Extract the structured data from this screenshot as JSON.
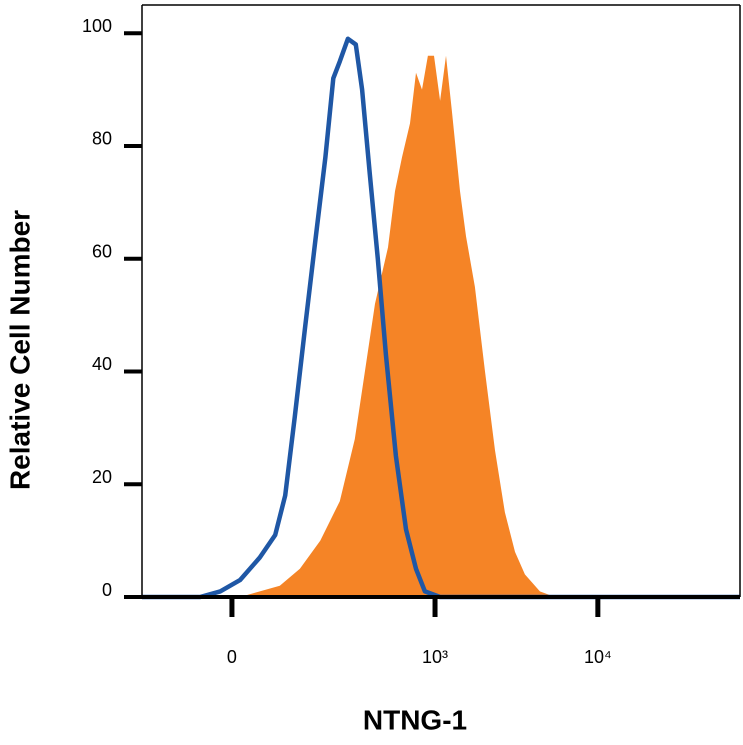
{
  "chart_data": {
    "type": "histogram-overlay",
    "xlabel": "NTNG-1",
    "ylabel": "Relative Cell Number",
    "xscale": "asinh",
    "xlim": [
      -187,
      74442
    ],
    "xticks": [
      0,
      {
        "value": 1000,
        "label": "10³"
      },
      {
        "value": 10000,
        "label": "10⁴"
      }
    ],
    "ylim": [
      0,
      105
    ],
    "yticks": [
      0,
      20,
      40,
      60,
      80,
      100
    ],
    "series": [
      {
        "style": "filled",
        "color": "#f58426",
        "x": [
          -187,
          13,
          46,
          83,
          127,
          182,
          249,
          313,
          364,
          422,
          510,
          564,
          624,
          700,
          763,
          831,
          904,
          985,
          1074,
          1169,
          1272,
          1425,
          1552,
          1761,
          2029,
          2337,
          2690,
          3101,
          3568,
          4412,
          5461,
          74442
        ],
        "values": [
          0,
          0,
          1,
          2,
          5,
          10,
          17,
          28,
          40,
          52,
          62,
          72,
          78,
          84,
          93,
          90,
          96,
          96,
          88,
          96,
          86,
          72,
          64,
          55,
          40,
          26,
          15,
          8,
          4,
          1,
          0,
          0
        ]
      },
      {
        "style": "line",
        "color": "#1f57a5",
        "x": [
          -187,
          -53,
          -19,
          13,
          46,
          74,
          94,
          115,
          140,
          167,
          198,
          225,
          249,
          282,
          318,
          349,
          391,
          440,
          495,
          572,
          661,
          763,
          866,
          1074,
          2508,
          74442
        ],
        "values": [
          0,
          0,
          1,
          3,
          7,
          11,
          18,
          32,
          48,
          63,
          78,
          92,
          95,
          99,
          98,
          90,
          75,
          60,
          43,
          25,
          12,
          5,
          1,
          0,
          0,
          0
        ]
      }
    ]
  }
}
